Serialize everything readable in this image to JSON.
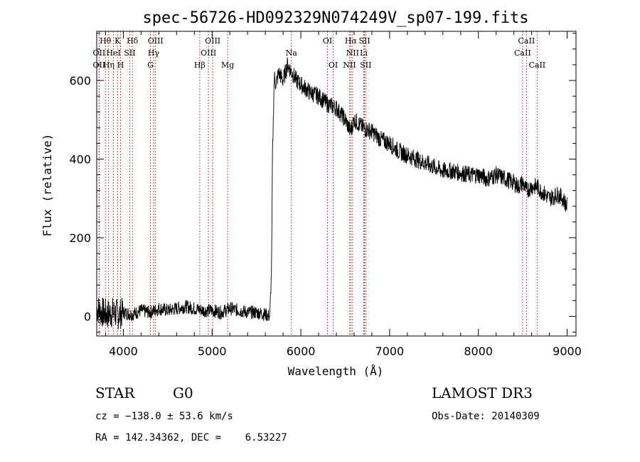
{
  "chart_data": {
    "type": "line",
    "title": "spec-56726-HD092329N074249V_sp07-199.fits",
    "xlabel": "Wavelength (Å)",
    "ylabel": "Flux (relative)",
    "xlim": [
      3700,
      9100
    ],
    "ylim": [
      -50,
      725
    ],
    "xticks": [
      4000,
      5000,
      6000,
      7000,
      8000,
      9000
    ],
    "yticks": [
      0,
      200,
      400,
      600
    ],
    "grid": false,
    "series": [
      {
        "name": "flux",
        "x": [
          3700,
          3760,
          3820,
          3880,
          3940,
          4000,
          4100,
          4200,
          4300,
          4400,
          4500,
          4600,
          4700,
          4800,
          4900,
          5000,
          5100,
          5200,
          5300,
          5400,
          5500,
          5600,
          5650,
          5670,
          5680,
          5700,
          5720,
          5750,
          5800,
          5850,
          5900,
          5950,
          6000,
          6100,
          6200,
          6300,
          6400,
          6500,
          6560,
          6600,
          6700,
          6800,
          6900,
          7000,
          7100,
          7200,
          7300,
          7400,
          7500,
          7600,
          7700,
          7800,
          7900,
          8000,
          8100,
          8200,
          8300,
          8400,
          8450,
          8500,
          8542,
          8600,
          8662,
          8700,
          8800,
          8900,
          8950,
          9000
        ],
        "y": [
          20,
          10,
          5,
          10,
          5,
          10,
          5,
          15,
          10,
          20,
          15,
          20,
          25,
          20,
          15,
          15,
          10,
          20,
          15,
          10,
          10,
          5,
          0,
          120,
          400,
          610,
          590,
          620,
          600,
          640,
          620,
          600,
          590,
          570,
          560,
          540,
          530,
          500,
          470,
          500,
          480,
          470,
          450,
          440,
          420,
          410,
          400,
          390,
          380,
          370,
          370,
          365,
          360,
          360,
          350,
          360,
          350,
          340,
          330,
          340,
          320,
          330,
          330,
          320,
          300,
          310,
          300,
          280
        ]
      }
    ],
    "lines": [
      {
        "name": "Hθ",
        "x": 3798,
        "row": 1
      },
      {
        "name": "OII",
        "x": 3727,
        "row": 2
      },
      {
        "name": "OII",
        "x": 3727,
        "row": 3
      },
      {
        "name": "K",
        "x": 3934,
        "row": 1
      },
      {
        "name": "HeI",
        "x": 3889,
        "row": 2
      },
      {
        "name": "Hη",
        "x": 3835,
        "row": 3
      },
      {
        "name": "Hδ",
        "x": 4102,
        "row": 1
      },
      {
        "name": "SII",
        "x": 4072,
        "row": 2
      },
      {
        "name": "H",
        "x": 3969,
        "row": 3
      },
      {
        "name": "OIII",
        "x": 4363,
        "row": 1
      },
      {
        "name": "Hγ",
        "x": 4341,
        "row": 2
      },
      {
        "name": "G",
        "x": 4305,
        "row": 3
      },
      {
        "name": "OIII",
        "x": 5007,
        "row": 1
      },
      {
        "name": "OIII",
        "x": 4959,
        "row": 2
      },
      {
        "name": "Hβ",
        "x": 4861,
        "row": 3
      },
      {
        "name": "Mg",
        "x": 5175,
        "row": 3
      },
      {
        "name": "Na",
        "x": 5893,
        "row": 2
      },
      {
        "name": "OI",
        "x": 6300,
        "row": 1
      },
      {
        "name": "OI",
        "x": 6364,
        "row": 3
      },
      {
        "name": "Hα",
        "x": 6563,
        "row": 1
      },
      {
        "name": "SII",
        "x": 6717,
        "row": 1
      },
      {
        "name": "NII",
        "x": 6583,
        "row": 2
      },
      {
        "name": "Li",
        "x": 6708,
        "row": 2
      },
      {
        "name": "NII",
        "x": 6548,
        "row": 3
      },
      {
        "name": "SII",
        "x": 6731,
        "row": 3
      },
      {
        "name": "CaII",
        "x": 8542,
        "row": 1
      },
      {
        "name": "CaII",
        "x": 8498,
        "row": 2
      },
      {
        "name": "CaII",
        "x": 8662,
        "row": 3
      }
    ]
  },
  "info": {
    "object_class": "STAR",
    "subclass": "G0",
    "survey": "LAMOST DR3",
    "cz": "cz = −138.0 ± 53.6 km/s",
    "obs_date": "Obs-Date: 20140309",
    "coords": "RA = 142.34362, DEC =    6.53227"
  }
}
